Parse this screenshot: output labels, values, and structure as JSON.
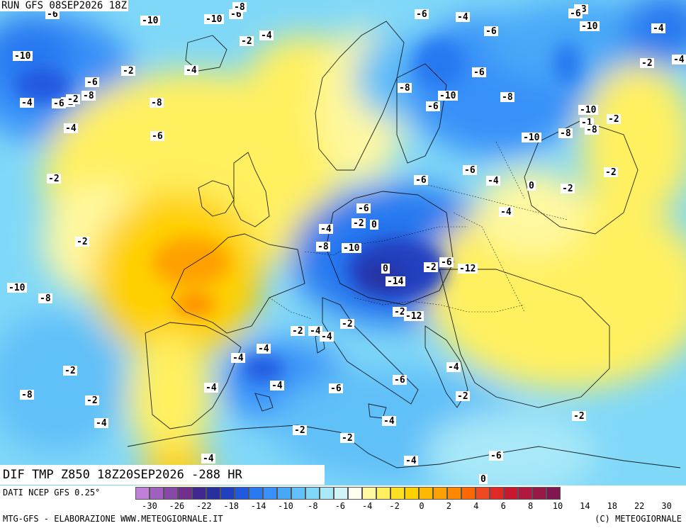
{
  "header": {
    "run_label": "RUN GFS 08SEP2026 18Z"
  },
  "title": {
    "text": "DIF TMP Z850 18Z20SEP2026 -288 HR"
  },
  "footer": {
    "source": "DATI NCEP GFS 0.25°",
    "credit": "MTG-GFS - ELABORAZIONE WWW.METEOGIORNALE.IT",
    "copyright": "(C) METEOGIORNALE"
  },
  "colorbar": {
    "colors": [
      "#c080d8",
      "#a060c0",
      "#8848a8",
      "#703090",
      "#402890",
      "#2830a0",
      "#2040c0",
      "#2058e0",
      "#2878f0",
      "#3890f8",
      "#48a8f8",
      "#60c0f8",
      "#80d8f8",
      "#a8e8f8",
      "#d0f4f8",
      "#fffff0",
      "#fff8a0",
      "#fff060",
      "#ffe020",
      "#ffd000",
      "#ffb800",
      "#ffa000",
      "#ff8800",
      "#ff6800",
      "#f04820",
      "#e02828",
      "#c81830",
      "#b01840",
      "#981848",
      "#801850"
    ],
    "tick_labels": [
      "-30",
      "-26",
      "-22",
      "-18",
      "-14",
      "-10",
      "-8",
      "-6",
      "-4",
      "-2",
      "0",
      "2",
      "4",
      "6",
      "8",
      "10",
      "14",
      "18",
      "22",
      "30"
    ]
  },
  "map_labels": [
    "-6",
    "-10",
    "-6",
    "-8",
    "-2",
    "-4",
    "-6",
    "-4",
    "-6",
    "-10",
    "-4",
    "-3",
    "-6",
    "-10",
    "-10",
    "-6",
    "-2",
    "-4",
    "-2",
    "-6",
    "-10",
    "-8",
    "-4",
    "-6",
    "-2",
    "-8",
    "-8",
    "-6",
    "-10",
    "-1",
    "-8",
    "-2",
    "-4",
    "-6",
    "-8",
    "-10",
    "-8",
    "-2",
    "-4",
    "-6",
    "-2",
    "-2",
    "-6",
    "-4",
    "0",
    "-2",
    "-6",
    "-4",
    "-2",
    "0",
    "-4",
    "-2",
    "-8",
    "-10",
    "0",
    "-2",
    "-6",
    "-12",
    "-14",
    "-10",
    "-8",
    "-2",
    "-12",
    "-2",
    "-4",
    "-4",
    "-2",
    "-4",
    "-4",
    "-4",
    "-6",
    "-6",
    "-4",
    "-2",
    "-4",
    "-8",
    "-2",
    "-4",
    "-2",
    "-2",
    "-4",
    "-2",
    "-2",
    "-6",
    "-4",
    "-4",
    "0",
    "-4",
    "-2",
    "-2",
    "-2",
    "-4",
    "-2",
    "-4"
  ]
}
